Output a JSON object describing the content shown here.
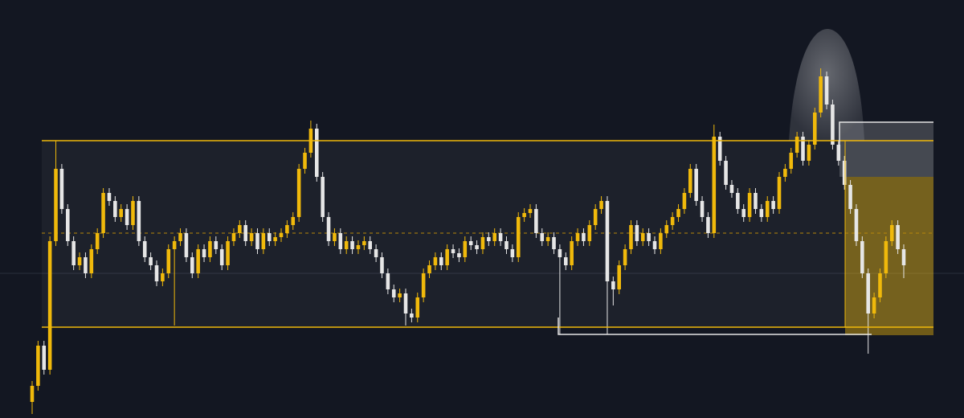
{
  "chart_data": {
    "type": "candlestick",
    "open": [
      20,
      40,
      90,
      60,
      220,
      310,
      260,
      220,
      190,
      200,
      180,
      210,
      230,
      280,
      270,
      250,
      260,
      240,
      270,
      220,
      200,
      190,
      170,
      180,
      210,
      220,
      230,
      200,
      180,
      210,
      200,
      220,
      210,
      190,
      220,
      230,
      240,
      220,
      230,
      210,
      230,
      220,
      225,
      230,
      240,
      250,
      310,
      330,
      360,
      300,
      250,
      220,
      230,
      210,
      220,
      210,
      215,
      220,
      210,
      200,
      180,
      160,
      150,
      155,
      130,
      125,
      150,
      180,
      190,
      200,
      190,
      210,
      205,
      200,
      220,
      215,
      210,
      225,
      220,
      230,
      220,
      210,
      200,
      250,
      255,
      260,
      230,
      220,
      225,
      210,
      200,
      190,
      220,
      230,
      220,
      240,
      260,
      270,
      170,
      160,
      190,
      210,
      240,
      220,
      230,
      220,
      210,
      230,
      240,
      250,
      260,
      280,
      310,
      270,
      250,
      230,
      350,
      320,
      290,
      280,
      260,
      250,
      280,
      260,
      250,
      270,
      260,
      300,
      310,
      330,
      350,
      320,
      340,
      380,
      425,
      390,
      340,
      320,
      290,
      260,
      220,
      180,
      130,
      150,
      180,
      220,
      240,
      210
    ],
    "high": [
      46,
      96,
      96,
      226,
      345,
      316,
      266,
      226,
      206,
      206,
      216,
      236,
      286,
      286,
      276,
      266,
      266,
      276,
      276,
      226,
      206,
      196,
      186,
      216,
      226,
      236,
      236,
      206,
      216,
      216,
      226,
      226,
      216,
      226,
      236,
      246,
      246,
      236,
      236,
      236,
      236,
      231,
      236,
      246,
      256,
      316,
      336,
      370,
      366,
      306,
      256,
      236,
      236,
      226,
      226,
      221,
      226,
      226,
      216,
      206,
      186,
      166,
      161,
      161,
      136,
      156,
      186,
      196,
      206,
      206,
      216,
      216,
      211,
      226,
      226,
      221,
      231,
      231,
      236,
      236,
      226,
      216,
      256,
      261,
      266,
      266,
      236,
      231,
      231,
      216,
      206,
      226,
      236,
      236,
      246,
      266,
      276,
      276,
      176,
      196,
      216,
      246,
      246,
      236,
      236,
      226,
      236,
      246,
      256,
      266,
      286,
      316,
      316,
      276,
      256,
      365,
      356,
      326,
      296,
      286,
      266,
      286,
      286,
      266,
      276,
      276,
      306,
      316,
      336,
      356,
      356,
      346,
      386,
      435,
      431,
      396,
      346,
      326,
      296,
      266,
      226,
      186,
      156,
      186,
      226,
      246,
      246,
      216
    ],
    "low": [
      5,
      34,
      54,
      54,
      214,
      254,
      214,
      184,
      184,
      174,
      174,
      204,
      224,
      264,
      244,
      244,
      234,
      234,
      214,
      194,
      184,
      164,
      164,
      174,
      115,
      214,
      194,
      174,
      174,
      194,
      194,
      204,
      184,
      184,
      214,
      224,
      214,
      214,
      204,
      204,
      214,
      214,
      219,
      224,
      234,
      244,
      304,
      324,
      294,
      244,
      214,
      214,
      204,
      204,
      204,
      204,
      209,
      204,
      194,
      174,
      154,
      144,
      144,
      115,
      119,
      119,
      144,
      174,
      184,
      184,
      184,
      199,
      194,
      194,
      209,
      204,
      204,
      214,
      214,
      214,
      204,
      194,
      194,
      244,
      249,
      224,
      214,
      214,
      204,
      104,
      184,
      184,
      214,
      214,
      214,
      234,
      254,
      104,
      140,
      154,
      184,
      204,
      214,
      214,
      214,
      204,
      204,
      224,
      234,
      244,
      254,
      274,
      264,
      244,
      224,
      224,
      314,
      284,
      274,
      254,
      244,
      244,
      254,
      244,
      244,
      254,
      254,
      294,
      304,
      324,
      314,
      314,
      334,
      374,
      384,
      334,
      314,
      284,
      254,
      214,
      174,
      80,
      124,
      144,
      174,
      214,
      204,
      174
    ],
    "close": [
      40,
      90,
      60,
      220,
      310,
      260,
      220,
      190,
      200,
      180,
      210,
      230,
      280,
      270,
      250,
      260,
      240,
      270,
      220,
      200,
      190,
      170,
      180,
      210,
      220,
      230,
      200,
      180,
      210,
      200,
      220,
      210,
      190,
      220,
      230,
      240,
      220,
      230,
      210,
      230,
      220,
      225,
      230,
      240,
      250,
      310,
      330,
      360,
      300,
      250,
      220,
      230,
      210,
      220,
      210,
      215,
      220,
      210,
      200,
      180,
      160,
      150,
      155,
      130,
      125,
      150,
      180,
      190,
      200,
      190,
      210,
      205,
      200,
      220,
      215,
      210,
      225,
      220,
      230,
      220,
      210,
      200,
      250,
      255,
      260,
      230,
      220,
      225,
      210,
      200,
      190,
      220,
      230,
      220,
      240,
      260,
      270,
      170,
      160,
      190,
      210,
      240,
      220,
      230,
      220,
      210,
      230,
      240,
      250,
      260,
      280,
      310,
      270,
      250,
      230,
      350,
      320,
      290,
      280,
      260,
      250,
      280,
      260,
      250,
      270,
      260,
      300,
      310,
      330,
      350,
      320,
      340,
      380,
      425,
      390,
      340,
      320,
      290,
      260,
      220,
      180,
      130,
      150,
      180,
      220,
      240,
      210,
      190
    ],
    "ylim": [
      0,
      520
    ],
    "up_color": "#f0b90b",
    "down_color": "#e6e6e6"
  }
}
